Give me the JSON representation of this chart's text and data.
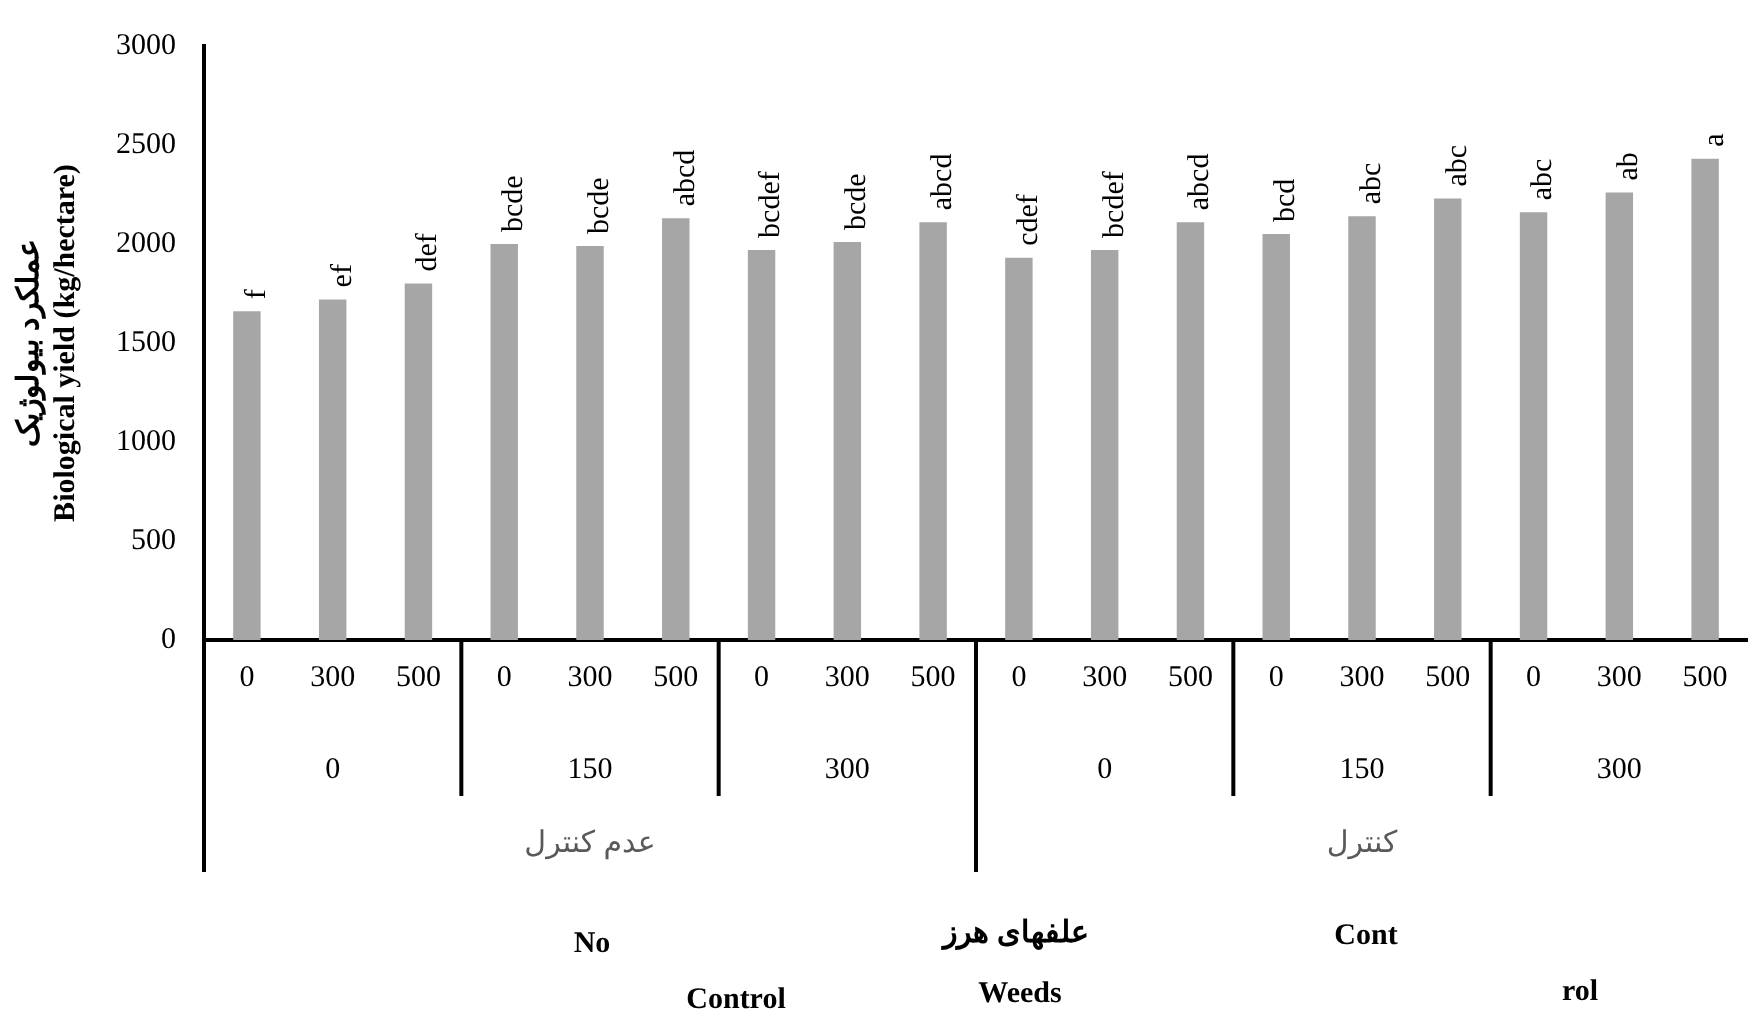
{
  "chart_data": {
    "type": "bar",
    "ylabel": "عملکرد بیولوژیک\nBiological yield (kg/hectare)",
    "categories": [
      "0",
      "300",
      "500",
      "0",
      "300",
      "500",
      "0",
      "300",
      "500",
      "0",
      "300",
      "500",
      "0",
      "300",
      "500",
      "0",
      "300",
      "500"
    ],
    "values": [
      1660,
      1720,
      1800,
      2000,
      1990,
      2130,
      1970,
      2010,
      2110,
      1930,
      1970,
      2110,
      2050,
      2140,
      2230,
      2160,
      2260,
      2430
    ],
    "value_labels": [
      "f",
      "ef",
      "def",
      "bcde",
      "bcde",
      "abcd",
      "bcdef",
      "bcde",
      "abcd",
      "cdef",
      "bcdef",
      "abcd",
      "bcd",
      "abc",
      "abc",
      "abc",
      "ab",
      "a"
    ],
    "color": "#a6a6a6",
    "ylim": [
      0,
      3000
    ],
    "yticks": [
      0,
      500,
      1000,
      1500,
      2000,
      2500,
      3000
    ],
    "grid": false,
    "legend": false,
    "annotations": [
      "0",
      "150",
      "300",
      "0",
      "150",
      "300",
      "عدم کنترل",
      "کنترل",
      "No",
      "Control",
      "علفهای هرز",
      "Weeds",
      "Cont",
      "rol"
    ]
  }
}
